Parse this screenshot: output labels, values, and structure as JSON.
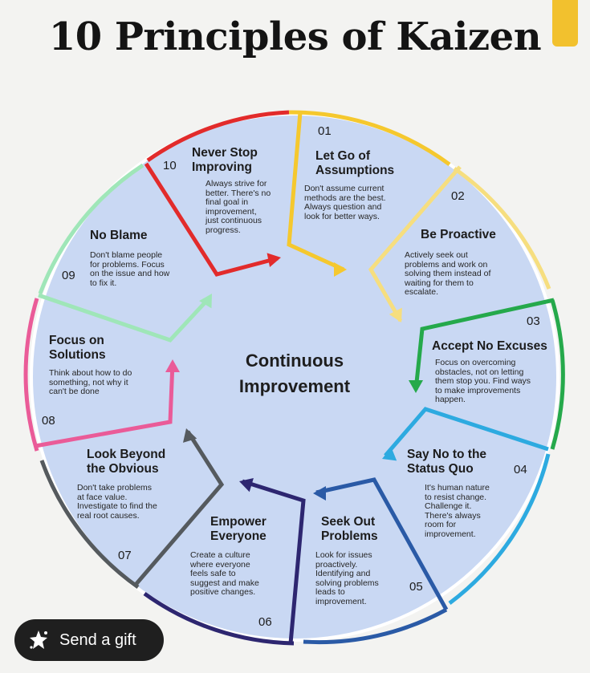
{
  "title": "10 Principles of Kaizen",
  "center_label": [
    "Continuous",
    "Improvement"
  ],
  "principles": [
    {
      "number": "01",
      "heading": [
        "Let Go of",
        "Assumptions"
      ],
      "body": [
        "Don't assume current",
        "methods are the best.",
        "Always question and",
        "look for better ways."
      ],
      "color": "#f5c82e"
    },
    {
      "number": "02",
      "heading": [
        "Be Proactive"
      ],
      "body": [
        "Actively seek out",
        "problems and work on",
        "solving them instead of",
        "waiting for them to",
        "escalate."
      ],
      "color": "#f6de7f"
    },
    {
      "number": "03",
      "heading": [
        "Accept No Excuses"
      ],
      "body": [
        "Focus on overcoming",
        "obstacles, not on letting",
        "them stop you. Find ways",
        "to make improvements",
        "happen."
      ],
      "color": "#25a94b"
    },
    {
      "number": "04",
      "heading": [
        "Say No to the",
        "Status Quo"
      ],
      "body": [
        "It's human nature",
        "to resist change.",
        "Challenge it.",
        "There's always",
        "room for",
        "improvement."
      ],
      "color": "#2daae0"
    },
    {
      "number": "05",
      "heading": [
        "Seek Out",
        "Problems"
      ],
      "body": [
        "Look for issues",
        "proactively.",
        "Identifying and",
        "solving problems",
        "leads to",
        "improvement."
      ],
      "color": "#2a5aa6"
    },
    {
      "number": "06",
      "heading": [
        "Empower",
        "Everyone"
      ],
      "body": [
        "Create a culture",
        "where everyone",
        "feels safe to",
        "suggest and make",
        "positive changes."
      ],
      "color": "#2d2670"
    },
    {
      "number": "07",
      "heading": [
        "Look Beyond",
        "the Obvious"
      ],
      "body": [
        "Don't take problems",
        "at face value.",
        "Investigate to find the",
        "real root causes."
      ],
      "color": "#555a5e"
    },
    {
      "number": "08",
      "heading": [
        "Focus on",
        "Solutions"
      ],
      "body": [
        "Think about how to do",
        "something, not why it",
        "can't be done"
      ],
      "color": "#ea5b98"
    },
    {
      "number": "09",
      "heading": [
        "No Blame"
      ],
      "body": [
        "Don't blame people",
        "for problems. Focus",
        "on the issue and how",
        "to fix it."
      ],
      "color": "#9fe6b8"
    },
    {
      "number": "10",
      "heading": [
        "Never Stop",
        "Improving"
      ],
      "body": [
        "Always strive for",
        "better. There's no",
        "final goal in",
        "improvement,",
        "just continuous",
        "progress."
      ],
      "color": "#e22b2b"
    }
  ],
  "circle_fill": "#c9d8f3",
  "circle_stroke": "#ffffff",
  "gift_button": {
    "label": "Send a gift",
    "icon": "gift-icon"
  }
}
